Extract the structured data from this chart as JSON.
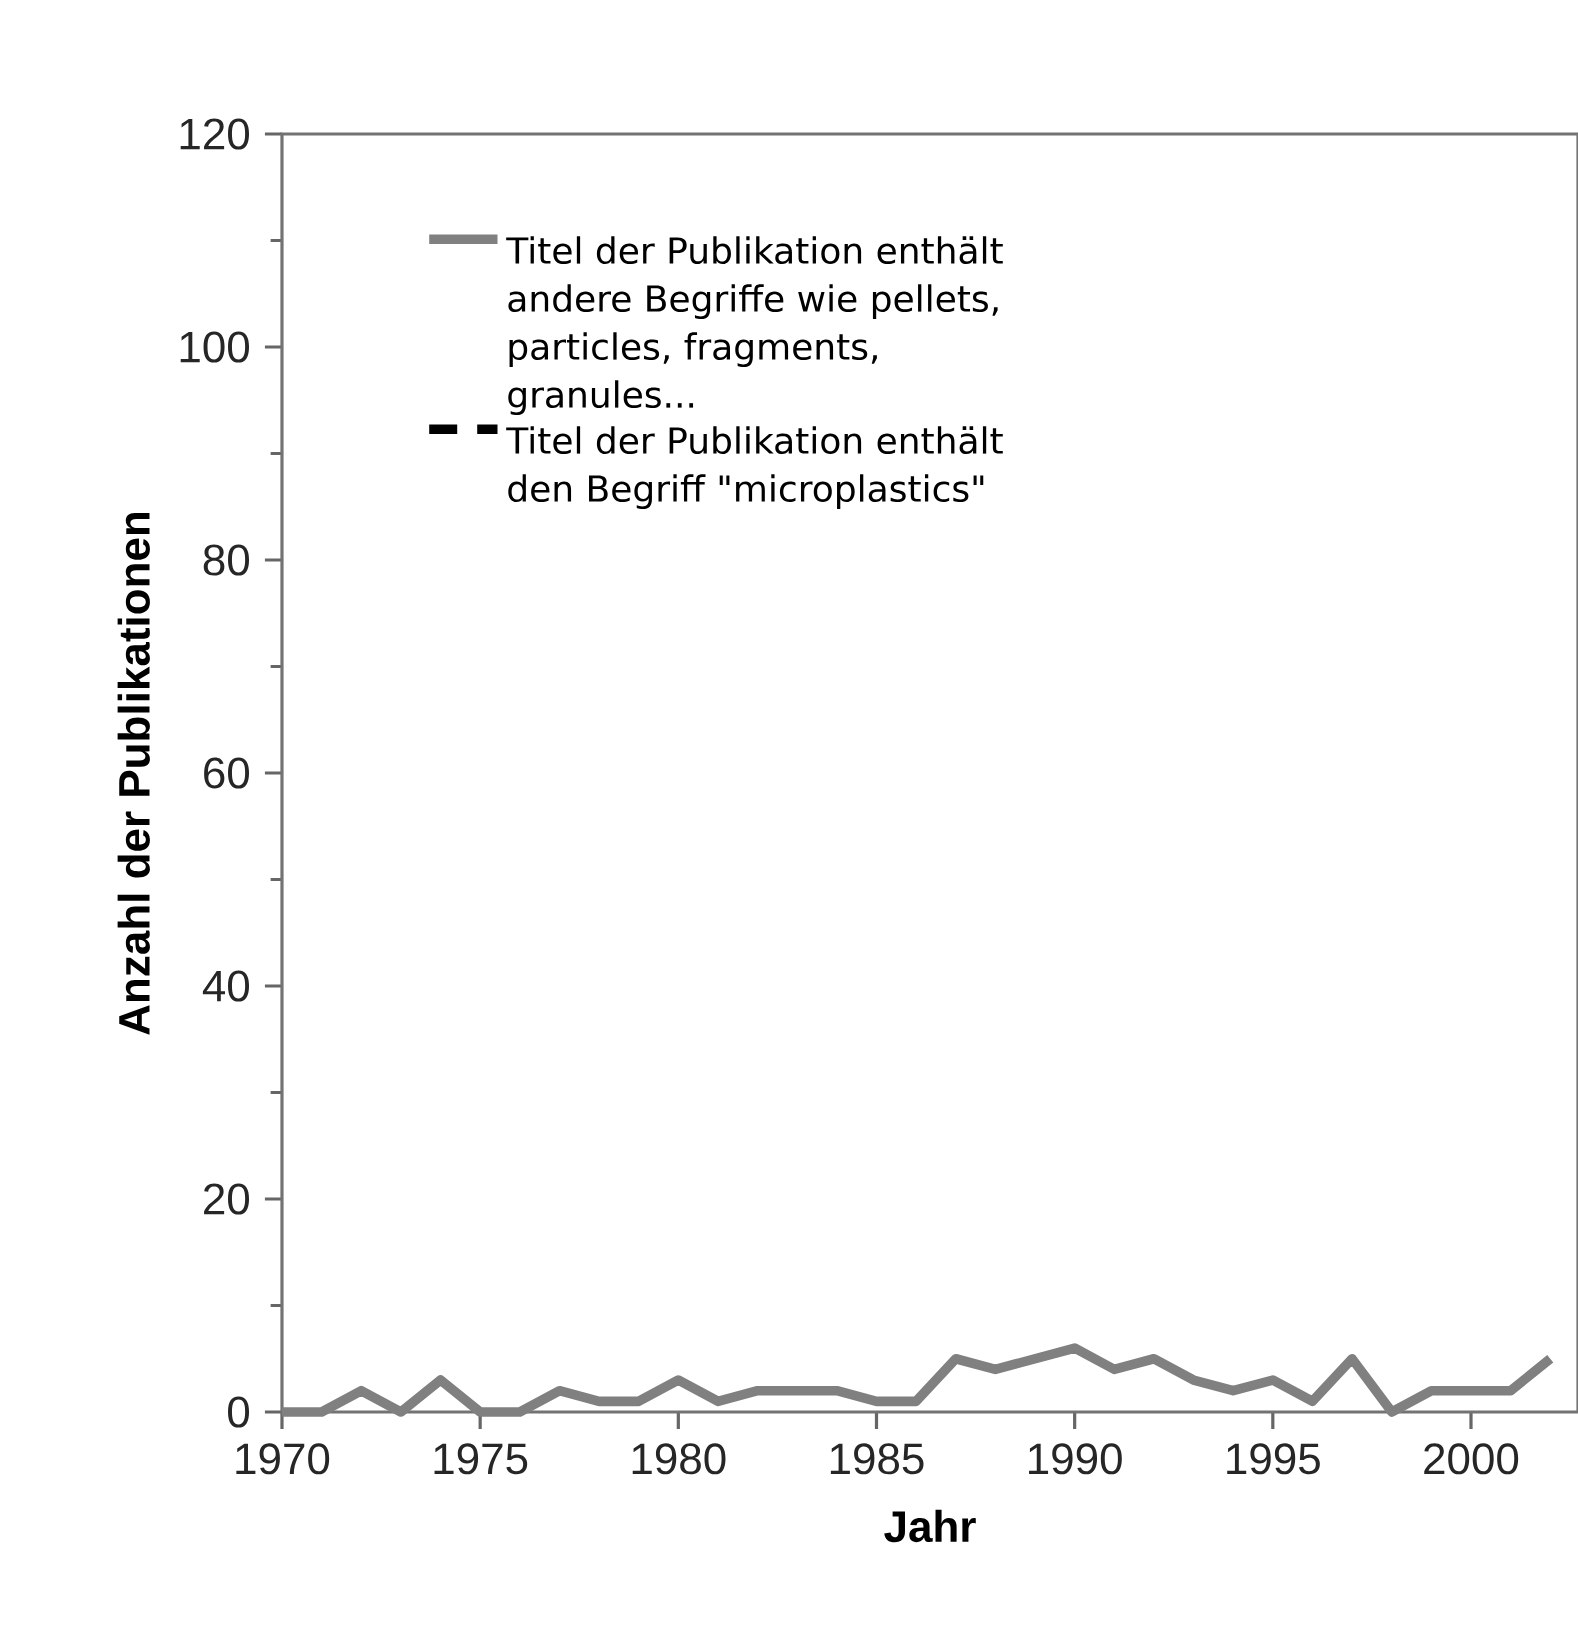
{
  "chart_data": {
    "type": "line",
    "xlabel": "Jahr",
    "ylabel": "Anzahl der Publikationen",
    "x": [
      1970,
      1971,
      1972,
      1973,
      1974,
      1975,
      1976,
      1977,
      1978,
      1979,
      1980,
      1981,
      1982,
      1983,
      1984,
      1985,
      1986,
      1987,
      1988,
      1989,
      1990,
      1991,
      1992,
      1993,
      1994,
      1995,
      1996,
      1997,
      1998,
      1999,
      2000,
      2001,
      2002
    ],
    "series": [
      {
        "name": "Titel der Publikation enthält andere Begriffe wie pellets, particles, fragments, granules...",
        "color": "#808080",
        "line_style": "solid",
        "values": [
          0,
          0,
          2,
          0,
          3,
          0,
          0,
          2,
          1,
          1,
          3,
          1,
          2,
          2,
          2,
          1,
          1,
          5,
          4,
          5,
          6,
          4,
          5,
          3,
          2,
          3,
          1,
          5,
          0,
          2,
          2,
          2,
          5
        ]
      },
      {
        "name": "Titel der Publikation enthält den Begriff \"microplastics\"",
        "color": "#000000",
        "line_style": "dashed",
        "values": [
          null,
          null,
          null,
          null,
          null,
          null,
          null,
          null,
          null,
          null,
          null,
          null,
          null,
          null,
          null,
          null,
          null,
          null,
          null,
          null,
          null,
          null,
          null,
          null,
          null,
          null,
          null,
          null,
          null,
          null,
          null,
          null,
          null
        ]
      }
    ],
    "xlim": [
      1970,
      2002.7
    ],
    "ylim": [
      0,
      120
    ],
    "xticks": [
      1970,
      1975,
      1980,
      1985,
      1990,
      1995,
      2000
    ],
    "yticks": [
      0,
      20,
      40,
      60,
      80,
      100,
      120
    ],
    "legend": "top left",
    "grid": false,
    "marker": "none"
  }
}
